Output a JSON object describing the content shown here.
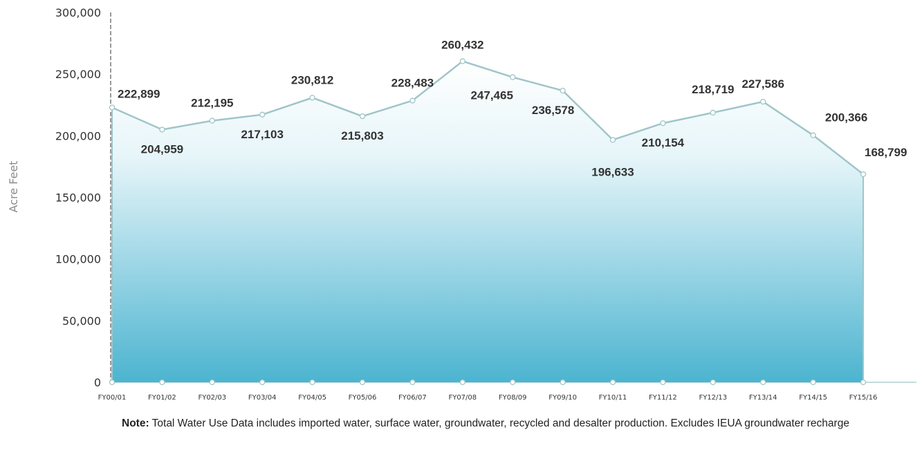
{
  "chart_data": {
    "type": "area",
    "ylabel": "Acre Feet",
    "xlabel": "",
    "ylim": [
      0,
      300000
    ],
    "yticks": [
      "0",
      "50,000",
      "100,000",
      "150,000",
      "200,000",
      "250,000",
      "300,000"
    ],
    "categories": [
      "FY00/01",
      "FY01/02",
      "FY02/03",
      "FY03/04",
      "FY04/05",
      "FY05/06",
      "FY06/07",
      "FY07/08",
      "FY08/09",
      "FY09/10",
      "FY10/11",
      "FY11/12",
      "FY12/13",
      "FY13/14",
      "FY14/15",
      "FY15/16"
    ],
    "values": [
      222899,
      204959,
      212195,
      217103,
      230812,
      215803,
      228483,
      260432,
      247465,
      236578,
      196633,
      210154,
      218719,
      227586,
      200366,
      168799
    ],
    "data_labels": [
      "222,899",
      "204,959",
      "212,195",
      "217,103",
      "230,812",
      "215,803",
      "228,483",
      "260,432",
      "247,465",
      "236,578",
      "196,633",
      "210,154",
      "218,719",
      "227,586",
      "200,366",
      "168,799"
    ],
    "grid": false,
    "legend": "none",
    "colors": {
      "line": "#9fc5c9",
      "fill_top": "#ffffff",
      "fill_bottom": "#4cb4d0",
      "marker": "#ffffff"
    }
  },
  "note": {
    "lead": "Note:",
    "text": " Total Water Use Data includes imported water, surface water, groundwater, recycled and desalter production. Excludes IEUA groundwater recharge"
  }
}
